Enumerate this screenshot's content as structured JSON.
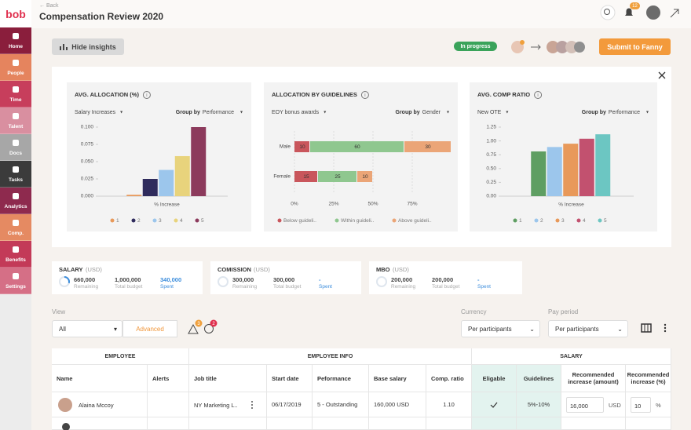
{
  "sidebar": {
    "logo": "bob",
    "items": [
      "Home",
      "People",
      "Time",
      "Talent",
      "Docs",
      "Tasks",
      "Analytics",
      "Comp.",
      "Benefits",
      "Settings"
    ]
  },
  "header": {
    "back": "Back",
    "title": "Compensation Review 2020",
    "notifications": 12
  },
  "toolbar": {
    "hide_insights": "Hide insights",
    "status": "In progress",
    "submit": "Submit to Fanny"
  },
  "insights": {
    "charts": [
      {
        "type": "bar",
        "title": "AVG. ALLOCATION (%)",
        "filter": "Salary Increases",
        "group_by_label": "Group by",
        "group_by": "Performance",
        "x_label": "% Increase",
        "categories": [
          "1",
          "2",
          "3",
          "4",
          "5"
        ],
        "colors": [
          "#e8995a",
          "#2f2b5c",
          "#9cc6ec",
          "#e8d37c",
          "#8c3a5c"
        ],
        "values": [
          0.002,
          0.025,
          0.038,
          0.058,
          0.1
        ],
        "ylim": [
          0,
          0.1
        ],
        "yticks": [
          {
            "value": 0,
            "label": "0.000"
          },
          {
            "value": 0.025,
            "label": "0.025"
          },
          {
            "value": 0.05,
            "label": "0.050"
          },
          {
            "value": 0.075,
            "label": "0.075"
          },
          {
            "value": 0.1,
            "label": "0.100"
          }
        ]
      },
      {
        "type": "hbar_stacked",
        "title": "ALLOCATION BY GUIDELINES",
        "filter": "EOY bonus awards",
        "group_by_label": "Group by",
        "group_by": "Gender",
        "categories": [
          "Male",
          "Female"
        ],
        "series": [
          {
            "name": "Below guideli..",
            "color": "#c9565c",
            "values": [
              10,
              15
            ]
          },
          {
            "name": "Within guideli..",
            "color": "#8fc78f",
            "values": [
              60,
              25
            ]
          },
          {
            "name": "Above guideli..",
            "color": "#eba577",
            "values": [
              30,
              10
            ]
          }
        ],
        "xlim": [
          0,
          100
        ],
        "xticks": [
          {
            "value": 0,
            "label": "0%"
          },
          {
            "value": 25,
            "label": "25%"
          },
          {
            "value": 50,
            "label": "50%"
          },
          {
            "value": 75,
            "label": "75%"
          }
        ]
      },
      {
        "type": "bar",
        "title": "AVG. COMP RATIO",
        "filter": "New OTE",
        "group_by_label": "Group by",
        "group_by": "Performance",
        "x_label": "% Increase",
        "categories": [
          "1",
          "2",
          "3",
          "4",
          "5"
        ],
        "colors": [
          "#5e9e62",
          "#9cc6ec",
          "#e8995a",
          "#c2516f",
          "#6cc6c2"
        ],
        "values": [
          0.81,
          0.89,
          0.95,
          1.04,
          1.12
        ],
        "ylim": [
          0,
          1.25
        ],
        "yticks": [
          {
            "value": 0,
            "label": "0.00"
          },
          {
            "value": 0.25,
            "label": "0.25"
          },
          {
            "value": 0.5,
            "label": "0.50"
          },
          {
            "value": 0.75,
            "label": "0.75"
          },
          {
            "value": 1,
            "label": "1.00"
          },
          {
            "value": 1.25,
            "label": "1.25"
          }
        ]
      }
    ]
  },
  "budgets": [
    {
      "title": "SALARY",
      "unit": "(USD)",
      "remaining": "660,000",
      "remaining_label": "Remaining",
      "total": "1,000,000",
      "total_label": "Total budget",
      "spent": "340,000",
      "spent_label": "Spent"
    },
    {
      "title": "COMISSION",
      "unit": "(USD)",
      "remaining": "300,000",
      "remaining_label": "Remaining",
      "total": "300,000",
      "total_label": "Total budget",
      "spent": "-",
      "spent_label": "Spent"
    },
    {
      "title": "MBO",
      "unit": "(USD)",
      "remaining": "200,000",
      "remaining_label": "Remaining",
      "total": "200,000",
      "total_label": "Total budget",
      "spent": "-",
      "spent_label": "Spent"
    }
  ],
  "filters": {
    "view_label": "View",
    "view": "All",
    "advanced": "Advanced",
    "alerts": [
      3,
      2
    ],
    "currency_label": "Currency",
    "currency": "Per participants",
    "pay_period_label": "Pay period",
    "pay_period": "Per participants"
  },
  "table": {
    "groups": [
      "EMPLOYEE",
      "EMPLOYEE INFO",
      "SALARY"
    ],
    "columns": [
      "Name",
      "Alerts",
      "Job title",
      "Start date",
      "Peformance",
      "Base salary",
      "Comp. ratio",
      "Eligable",
      "Guidelines",
      "Recommended increase (amount)",
      "Recommended increase (%)"
    ],
    "rows": [
      {
        "name": "Alaina Mccoy",
        "job_title": "NY Marketing L..",
        "start_date": "06/17/2019",
        "performance": "5 - Outstanding",
        "base_salary": "160,000 USD",
        "comp_ratio": "1.10",
        "guidelines": "5%-10%",
        "amount": "16,000",
        "amount_unit": "USD",
        "percent": "10",
        "percent_unit": "%"
      }
    ]
  }
}
